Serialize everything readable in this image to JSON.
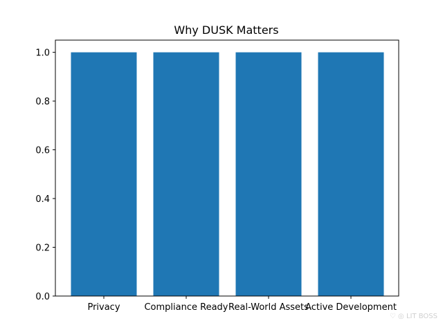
{
  "chart_data": {
    "type": "bar",
    "title": "Why DUSK Matters",
    "categories": [
      "Privacy",
      "Compliance Ready",
      "Real-World Assets",
      "Active Development"
    ],
    "values": [
      1.0,
      1.0,
      1.0,
      1.0
    ],
    "ylim": [
      0,
      1.05
    ],
    "yticks": [
      "0.0",
      "0.2",
      "0.4",
      "0.6",
      "0.8",
      "1.0"
    ],
    "xlabel": "",
    "ylabel": "",
    "bar_color": "#1f77b4",
    "grid": false
  },
  "watermark": "♡ ◎ LIT BOSS"
}
